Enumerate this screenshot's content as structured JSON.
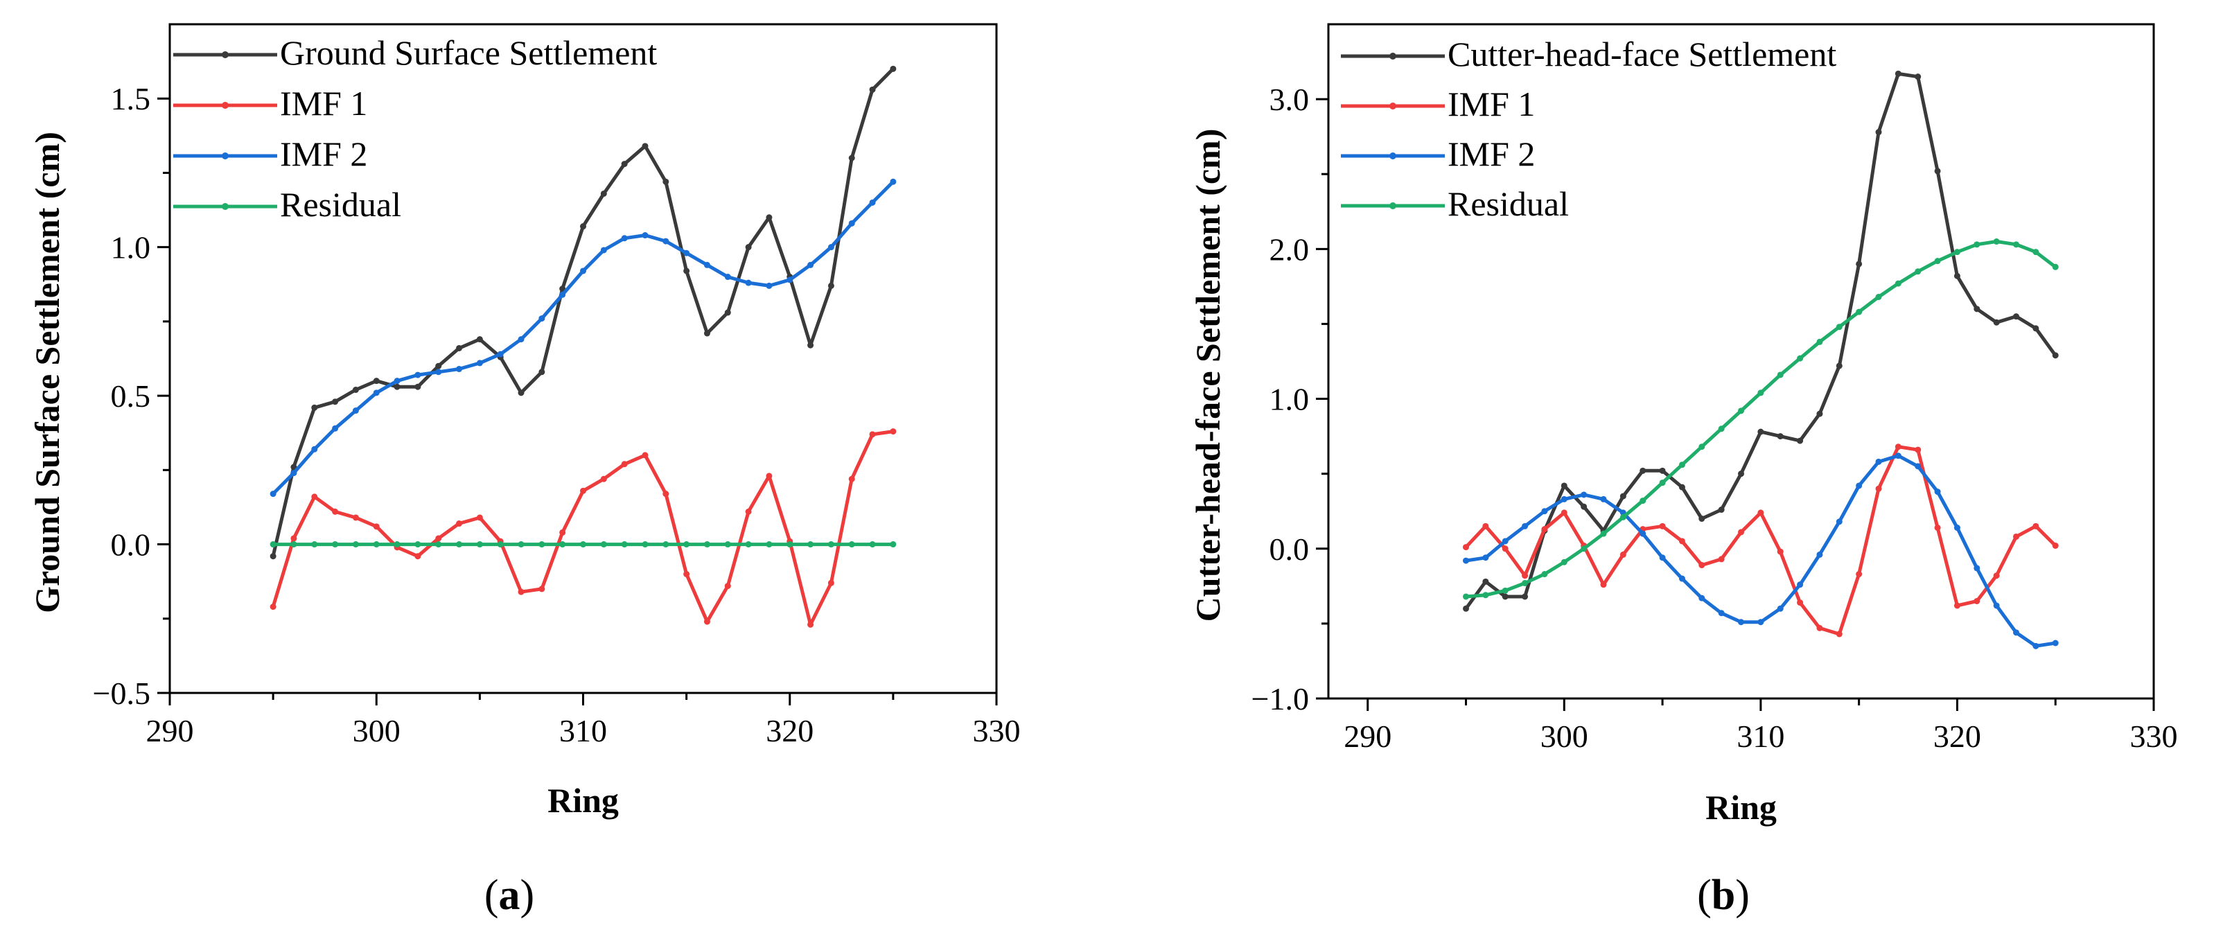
{
  "chart_data": [
    {
      "type": "line",
      "panel": "a",
      "caption_prefix": "(",
      "caption_letter": "a",
      "caption_suffix": ")",
      "xlabel": "Ring",
      "ylabel": "Ground Surface Settlement (cm)",
      "xlim": [
        290,
        330
      ],
      "ylim": [
        -0.5,
        1.75
      ],
      "xticks": [
        290,
        300,
        310,
        320,
        330
      ],
      "xtick_labels": [
        "290",
        "300",
        "310",
        "320",
        "330"
      ],
      "yticks": [
        -0.5,
        0.0,
        0.5,
        1.0,
        1.5
      ],
      "ytick_labels": [
        "−0.5",
        "0.0",
        "0.5",
        "1.0",
        "1.5"
      ],
      "legend_position": "top-left",
      "x": [
        295,
        296,
        297,
        298,
        299,
        300,
        301,
        302,
        303,
        304,
        305,
        306,
        307,
        308,
        309,
        310,
        311,
        312,
        313,
        314,
        315,
        316,
        317,
        318,
        319,
        320,
        321,
        322,
        323,
        324,
        325
      ],
      "series": [
        {
          "name": "Ground Surface Settlement",
          "color": "#3a3a3a",
          "values": [
            -0.04,
            0.26,
            0.46,
            0.48,
            0.52,
            0.55,
            0.53,
            0.53,
            0.6,
            0.66,
            0.69,
            0.63,
            0.51,
            0.58,
            0.86,
            1.07,
            1.18,
            1.28,
            1.34,
            1.22,
            0.92,
            0.71,
            0.78,
            1.0,
            1.1,
            0.9,
            0.67,
            0.87,
            1.3,
            1.53,
            1.6
          ]
        },
        {
          "name": "IMF 1",
          "color": "#ee3b3b",
          "values": [
            -0.21,
            0.02,
            0.16,
            0.11,
            0.09,
            0.06,
            -0.01,
            -0.04,
            0.02,
            0.07,
            0.09,
            0.01,
            -0.16,
            -0.15,
            0.04,
            0.18,
            0.22,
            0.27,
            0.3,
            0.17,
            -0.1,
            -0.26,
            -0.14,
            0.11,
            0.23,
            0.01,
            -0.27,
            -0.13,
            0.22,
            0.37,
            0.38
          ]
        },
        {
          "name": "IMF 2",
          "color": "#1a6fd6",
          "values": [
            0.17,
            0.24,
            0.32,
            0.39,
            0.45,
            0.51,
            0.55,
            0.57,
            0.58,
            0.59,
            0.61,
            0.64,
            0.69,
            0.76,
            0.84,
            0.92,
            0.99,
            1.03,
            1.04,
            1.02,
            0.98,
            0.94,
            0.9,
            0.88,
            0.87,
            0.89,
            0.94,
            1.0,
            1.08,
            1.15,
            1.22
          ]
        },
        {
          "name": "Residual",
          "color": "#1fae6a",
          "values": [
            0,
            0,
            0,
            0,
            0,
            0,
            0,
            0,
            0,
            0,
            0,
            0,
            0,
            0,
            0,
            0,
            0,
            0,
            0,
            0,
            0,
            0,
            0,
            0,
            0,
            0,
            0,
            0,
            0,
            0,
            0
          ]
        }
      ]
    },
    {
      "type": "line",
      "panel": "b",
      "caption_prefix": "(",
      "caption_letter": "b",
      "caption_suffix": ")",
      "xlabel": "Ring",
      "ylabel": "Cutter-head-face  Settlement (cm)",
      "xlim": [
        288,
        330
      ],
      "ylim": [
        -1.0,
        3.5
      ],
      "xticks": [
        290,
        300,
        310,
        320,
        330
      ],
      "xtick_labels": [
        "290",
        "300",
        "310",
        "320",
        "330"
      ],
      "yticks": [
        -1.0,
        0.0,
        1.0,
        2.0,
        3.0
      ],
      "ytick_labels": [
        "−1.0",
        "0.0",
        "1.0",
        "2.0",
        "3.0"
      ],
      "legend_position": "top-left",
      "x": [
        295,
        296,
        297,
        298,
        299,
        300,
        301,
        302,
        303,
        304,
        305,
        306,
        307,
        308,
        309,
        310,
        311,
        312,
        313,
        314,
        315,
        316,
        317,
        318,
        319,
        320,
        321,
        322,
        323,
        324,
        325
      ],
      "series": [
        {
          "name": "Cutter-head-face  Settlement",
          "color": "#3a3a3a",
          "values": [
            -0.4,
            -0.22,
            -0.32,
            -0.32,
            0.12,
            0.42,
            0.28,
            0.12,
            0.35,
            0.52,
            0.52,
            0.41,
            0.2,
            0.26,
            0.5,
            0.78,
            0.75,
            0.72,
            0.9,
            1.22,
            1.9,
            2.78,
            3.17,
            3.15,
            2.52,
            1.82,
            1.6,
            1.51,
            1.55,
            1.47,
            1.29
          ]
        },
        {
          "name": "IMF 1",
          "color": "#ee3b3b",
          "values": [
            0.01,
            0.15,
            0.0,
            -0.18,
            0.13,
            0.24,
            0.02,
            -0.24,
            -0.04,
            0.13,
            0.15,
            0.05,
            -0.11,
            -0.07,
            0.11,
            0.24,
            -0.02,
            -0.36,
            -0.53,
            -0.57,
            -0.17,
            0.4,
            0.68,
            0.66,
            0.14,
            -0.38,
            -0.35,
            -0.18,
            0.08,
            0.15,
            0.02
          ]
        },
        {
          "name": "IMF 2",
          "color": "#1a6fd6",
          "values": [
            -0.08,
            -0.06,
            0.05,
            0.15,
            0.25,
            0.33,
            0.36,
            0.33,
            0.24,
            0.1,
            -0.06,
            -0.2,
            -0.33,
            -0.43,
            -0.49,
            -0.49,
            -0.4,
            -0.24,
            -0.04,
            0.18,
            0.42,
            0.58,
            0.62,
            0.55,
            0.38,
            0.14,
            -0.13,
            -0.38,
            -0.56,
            -0.65,
            -0.63
          ]
        },
        {
          "name": "Residual",
          "color": "#1fae6a",
          "values": [
            -0.32,
            -0.31,
            -0.28,
            -0.23,
            -0.17,
            -0.09,
            0.0,
            0.1,
            0.21,
            0.32,
            0.44,
            0.56,
            0.68,
            0.8,
            0.92,
            1.04,
            1.16,
            1.27,
            1.38,
            1.48,
            1.58,
            1.68,
            1.77,
            1.85,
            1.92,
            1.98,
            2.03,
            2.05,
            2.03,
            1.98,
            1.88
          ]
        }
      ]
    }
  ]
}
